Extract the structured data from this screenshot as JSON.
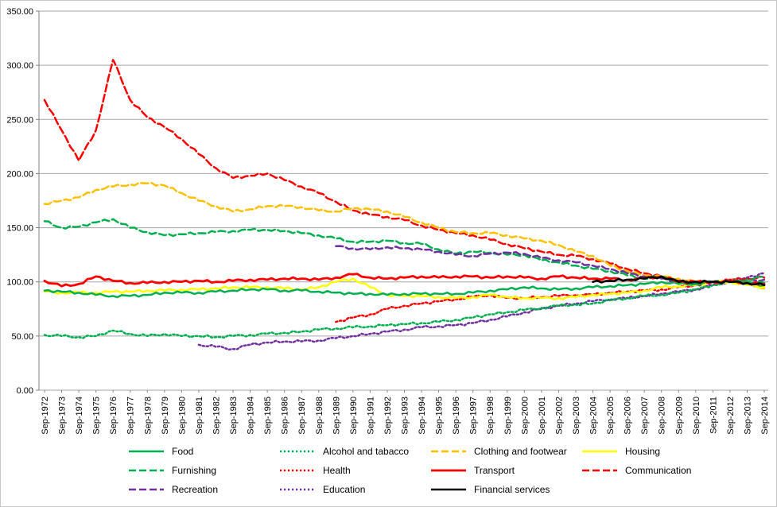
{
  "chart_data": {
    "type": "line",
    "title": "",
    "xlabel": "",
    "ylabel": "",
    "ylim": [
      0,
      350
    ],
    "grid": true,
    "legend_position": "bottom",
    "yticks": [
      {
        "value": 0,
        "label": "0.00"
      },
      {
        "value": 50,
        "label": "50.00"
      },
      {
        "value": 100,
        "label": "100.00"
      },
      {
        "value": 150,
        "label": "150.00"
      },
      {
        "value": 200,
        "label": "200.00"
      },
      {
        "value": 250,
        "label": "250.00"
      },
      {
        "value": 300,
        "label": "300.00"
      },
      {
        "value": 350,
        "label": "350.00"
      }
    ],
    "x_labels": [
      "Sep-1972",
      "Sep-1973",
      "Sep-1974",
      "Sep-1975",
      "Sep-1976",
      "Sep-1977",
      "Sep-1978",
      "Sep-1979",
      "Sep-1980",
      "Sep-1981",
      "Sep-1982",
      "Sep-1983",
      "Sep-1984",
      "Sep-1985",
      "Sep-1986",
      "Sep-1987",
      "Sep-1988",
      "Sep-1989",
      "Sep-1990",
      "Sep-1991",
      "Sep-1992",
      "Sep-1993",
      "Sep-1994",
      "Sep-1995",
      "Sep-1996",
      "Sep-1997",
      "Sep-1998",
      "Sep-1999",
      "Sep-2000",
      "Sep-2001",
      "Sep-2002",
      "Sep-2003",
      "Sep-2004",
      "Sep-2005",
      "Sep-2006",
      "Sep-2007",
      "Sep-2008",
      "Sep-2009",
      "Sep-2010",
      "Sep-2011",
      "Sep-2012",
      "Sep-2013",
      "Sep-2014"
    ],
    "series": [
      {
        "name": "Food",
        "color": "#00B050",
        "style": "solid",
        "width": 2.5,
        "start_index": 0,
        "values": [
          92,
          91,
          90,
          88,
          87,
          87,
          88,
          90,
          90,
          90,
          91,
          92,
          93,
          93,
          92,
          92,
          91,
          90,
          89,
          89,
          88,
          89,
          89,
          89,
          89,
          90,
          92,
          93,
          95,
          94,
          93,
          94,
          95,
          96,
          97,
          98,
          100,
          98,
          98,
          100,
          100,
          100,
          99
        ]
      },
      {
        "name": "Alcohol and tabacco",
        "color": "#00B050",
        "style": "dotted",
        "width": 2.5,
        "start_index": 0,
        "values": [
          51,
          50,
          49,
          50,
          55,
          52,
          50,
          52,
          50,
          50,
          49,
          50,
          51,
          52,
          53,
          54,
          56,
          57,
          58,
          59,
          60,
          61,
          62,
          63,
          65,
          67,
          70,
          72,
          74,
          76,
          78,
          79,
          80,
          83,
          85,
          87,
          88,
          90,
          93,
          97,
          100,
          102,
          105
        ]
      },
      {
        "name": "Clothing and footwear",
        "color": "#FFC000",
        "style": "dashed",
        "width": 2.5,
        "start_index": 0,
        "values": [
          172,
          175,
          178,
          185,
          188,
          190,
          191,
          189,
          182,
          175,
          170,
          165,
          167,
          170,
          170,
          169,
          166,
          165,
          168,
          167,
          165,
          160,
          155,
          150,
          146,
          145,
          145,
          143,
          140,
          138,
          134,
          128,
          124,
          115,
          110,
          106,
          105,
          103,
          100,
          100,
          100,
          98,
          94
        ]
      },
      {
        "name": "Housing",
        "color": "#FFFF00",
        "style": "solid",
        "width": 2.5,
        "start_index": 0,
        "values": [
          91,
          90,
          90,
          90,
          91,
          91,
          92,
          92,
          93,
          93,
          94,
          95,
          95,
          95,
          94,
          93,
          95,
          100,
          103,
          95,
          88,
          87,
          87,
          86,
          85,
          86,
          88,
          86,
          85,
          85,
          85,
          86,
          88,
          89,
          90,
          92,
          95,
          96,
          97,
          100,
          100,
          97,
          95
        ]
      },
      {
        "name": "Furnishing",
        "color": "#00B050",
        "style": "dashed",
        "width": 2.5,
        "start_index": 0,
        "values": [
          156,
          150,
          151,
          155,
          158,
          150,
          146,
          143,
          144,
          145,
          146,
          147,
          148,
          148,
          147,
          145,
          143,
          140,
          137,
          137,
          138,
          136,
          135,
          130,
          126,
          128,
          127,
          125,
          125,
          120,
          118,
          115,
          112,
          110,
          106,
          103,
          105,
          100,
          98,
          100,
          100,
          98,
          95
        ]
      },
      {
        "name": "Health",
        "color": "#FF0000",
        "style": "dotted",
        "width": 2.5,
        "start_index": 17,
        "values": [
          63,
          67,
          70,
          75,
          78,
          80,
          82,
          84,
          86,
          88,
          85,
          85,
          86,
          87,
          88,
          88,
          90,
          91,
          92,
          93,
          95,
          97,
          100,
          102,
          103,
          104
        ]
      },
      {
        "name": "Transport",
        "color": "#FF0000",
        "style": "solid",
        "width": 2.8,
        "start_index": 0,
        "values": [
          101,
          96,
          98,
          105,
          101,
          99,
          99,
          100,
          100,
          101,
          100,
          101,
          102,
          102,
          103,
          103,
          102,
          104,
          107,
          104,
          103,
          104,
          105,
          104,
          105,
          105,
          104,
          105,
          104,
          103,
          105,
          104,
          103,
          103,
          102,
          103,
          105,
          100,
          100,
          100,
          100,
          99,
          98
        ]
      },
      {
        "name": "Communication",
        "color": "#FF0000",
        "style": "dashed",
        "width": 2.5,
        "start_index": 0,
        "values": [
          268,
          240,
          212,
          240,
          305,
          268,
          252,
          243,
          232,
          218,
          205,
          196,
          198,
          200,
          194,
          188,
          182,
          174,
          166,
          162,
          160,
          157,
          152,
          148,
          145,
          143,
          139,
          135,
          131,
          128,
          125,
          124,
          121,
          117,
          112,
          108,
          105,
          102,
          100,
          100,
          100,
          100,
          97
        ]
      },
      {
        "name": "Recreation",
        "color": "#7030A0",
        "style": "dashed",
        "width": 2.5,
        "start_index": 17,
        "values": [
          133,
          131,
          130,
          132,
          131,
          130,
          128,
          125,
          124,
          126,
          127,
          126,
          122,
          120,
          118,
          115,
          112,
          108,
          105,
          103,
          100,
          99,
          100,
          100,
          101,
          102
        ]
      },
      {
        "name": "Education",
        "color": "#7030A0",
        "style": "dotted",
        "width": 2.5,
        "start_index": 9,
        "values": [
          42,
          40,
          38,
          42,
          44,
          45,
          45,
          46,
          48,
          50,
          52,
          54,
          56,
          58,
          59,
          60,
          62,
          65,
          68,
          72,
          75,
          78,
          80,
          82,
          84,
          85,
          87,
          89,
          91,
          93,
          97,
          100,
          104,
          108
        ]
      },
      {
        "name": "Financial services",
        "color": "#000000",
        "style": "solid",
        "width": 2.6,
        "start_index": 32,
        "values": [
          100,
          101,
          102,
          103,
          105,
          100,
          100,
          100,
          100,
          99,
          97
        ]
      }
    ]
  }
}
